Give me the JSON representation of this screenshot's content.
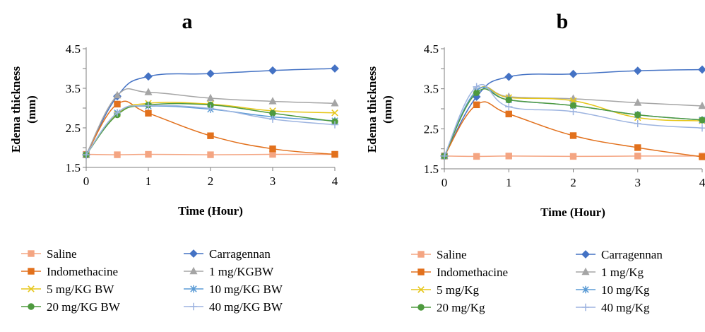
{
  "chart_data": [
    {
      "type": "line",
      "panel_label": "a",
      "xlabel": "Time (Hour)",
      "ylabel": "Edema thickness (mm)",
      "ylabel_lines": [
        "Edema thickness",
        "(mm)"
      ],
      "x": [
        0,
        0.5,
        1,
        2,
        3,
        4
      ],
      "xticks": [
        "0",
        "1",
        "2",
        "3",
        "4"
      ],
      "yticks": [
        "1.5",
        "2.5",
        "3.5",
        "4.5"
      ],
      "ylim": [
        1.5,
        4.5
      ],
      "xlim": [
        0,
        4
      ],
      "legend_position": "bottom",
      "series": [
        {
          "name": "Saline",
          "color": "#F4A582",
          "marker": "square",
          "values": [
            1.83,
            1.82,
            1.83,
            1.82,
            1.83,
            1.83
          ]
        },
        {
          "name": "Carragennan",
          "color": "#4472C4",
          "marker": "diamond",
          "values": [
            1.82,
            3.3,
            3.8,
            3.87,
            3.95,
            4.0
          ]
        },
        {
          "name": "Indomethacine",
          "color": "#E2711D",
          "marker": "square",
          "values": [
            1.82,
            3.1,
            2.87,
            2.3,
            1.97,
            1.83
          ]
        },
        {
          "name": "1 mg/KGBW",
          "color": "#A5A5A5",
          "marker": "triangle",
          "values": [
            1.82,
            3.32,
            3.4,
            3.25,
            3.17,
            3.12
          ]
        },
        {
          "name": "5 mg/KG BW",
          "color": "#E6C619",
          "marker": "x",
          "values": [
            1.82,
            2.85,
            3.12,
            3.1,
            2.93,
            2.88
          ]
        },
        {
          "name": "10 mg/KG BW",
          "color": "#5B9BD5",
          "marker": "star",
          "values": [
            1.82,
            2.88,
            3.05,
            2.97,
            2.78,
            2.68
          ]
        },
        {
          "name": "20 mg/KG BW",
          "color": "#4E9A3E",
          "marker": "circle",
          "values": [
            1.82,
            2.83,
            3.08,
            3.08,
            2.87,
            2.66
          ]
        },
        {
          "name": "40 mg/KG BW",
          "color": "#9DB4E0",
          "marker": "plus",
          "values": [
            1.82,
            2.88,
            3.06,
            2.99,
            2.72,
            2.58
          ]
        }
      ]
    },
    {
      "type": "line",
      "panel_label": "b",
      "xlabel": "Time (Hour)",
      "ylabel": "Edema thickness (mm)",
      "ylabel_lines": [
        "Edema thickness",
        "(mm)"
      ],
      "x": [
        0,
        0.5,
        1,
        2,
        3,
        4
      ],
      "xticks": [
        "0",
        "1",
        "2",
        "3",
        "4"
      ],
      "yticks": [
        "1.5",
        "2.5",
        "3.5",
        "4.5"
      ],
      "ylim": [
        1.5,
        4.5
      ],
      "xlim": [
        0,
        4
      ],
      "legend_position": "bottom",
      "series": [
        {
          "name": "Saline",
          "color": "#F4A582",
          "marker": "square",
          "values": [
            1.82,
            1.81,
            1.82,
            1.81,
            1.82,
            1.82
          ]
        },
        {
          "name": "Carragennan",
          "color": "#4472C4",
          "marker": "diamond",
          "values": [
            1.82,
            3.3,
            3.8,
            3.87,
            3.95,
            3.98
          ]
        },
        {
          "name": "Indomethacine",
          "color": "#E2711D",
          "marker": "square",
          "values": [
            1.82,
            3.1,
            2.87,
            2.33,
            2.03,
            1.8
          ]
        },
        {
          "name": "1 mg/Kg",
          "color": "#A5A5A5",
          "marker": "triangle",
          "values": [
            1.82,
            3.45,
            3.3,
            3.25,
            3.15,
            3.07
          ]
        },
        {
          "name": "5 mg/Kg",
          "color": "#E6C619",
          "marker": "x",
          "values": [
            1.82,
            3.45,
            3.28,
            3.2,
            2.78,
            2.7
          ]
        },
        {
          "name": "10 mg/Kg",
          "color": "#5B9BD5",
          "marker": "star",
          "values": [
            1.82,
            3.45,
            3.22,
            3.08,
            2.85,
            2.72
          ]
        },
        {
          "name": "20 mg/Kg",
          "color": "#4E9A3E",
          "marker": "circle",
          "values": [
            1.82,
            3.4,
            3.22,
            3.08,
            2.85,
            2.72
          ]
        },
        {
          "name": "40 mg/Kg",
          "color": "#9DB4E0",
          "marker": "plus",
          "values": [
            1.82,
            3.55,
            3.05,
            2.93,
            2.63,
            2.52
          ]
        }
      ]
    }
  ]
}
